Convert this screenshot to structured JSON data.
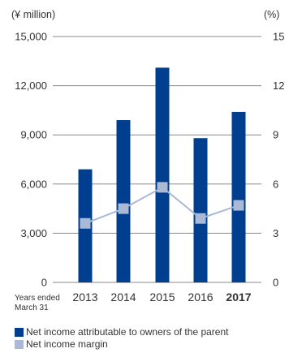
{
  "chart_data": {
    "type": "bar",
    "categories": [
      "2013",
      "2014",
      "2015",
      "2016",
      "2017"
    ],
    "highlight_category": "2017",
    "x_axis_note": [
      "Years ended",
      "March 31"
    ],
    "left_axis": {
      "unit": "(¥ million)",
      "ylim": [
        0,
        15000
      ],
      "ticks": [
        "0",
        "3,000",
        "6,000",
        "9,000",
        "12,000",
        "15,000"
      ]
    },
    "right_axis": {
      "unit": "(%)",
      "ylim": [
        0,
        15
      ],
      "ticks": [
        "0",
        "3",
        "6",
        "9",
        "12",
        "15"
      ]
    },
    "grid": true,
    "legend_position": "bottom",
    "series": [
      {
        "name": "Net income attributable to owners of the parent",
        "type": "bar",
        "axis": "left",
        "color": "#003f8f",
        "values": [
          6900,
          9900,
          13100,
          8800,
          10400
        ]
      },
      {
        "name": "Net income margin",
        "type": "line",
        "axis": "right",
        "color": "#a9b9d6",
        "values": [
          3.6,
          4.5,
          5.8,
          3.9,
          4.7
        ]
      }
    ]
  }
}
